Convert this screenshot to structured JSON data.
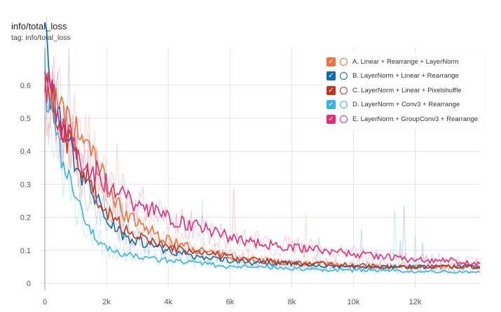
{
  "header": {
    "title": "info/total_loss",
    "subtitle": "tag: info/total_loss"
  },
  "chart_data": {
    "type": "line",
    "title": "info/total_loss",
    "xlim": [
      0,
      14100
    ],
    "ylim": [
      0,
      0.72
    ],
    "x_ticks": [
      0,
      2000,
      4000,
      6000,
      8000,
      10000,
      12000
    ],
    "x_tick_labels": [
      "0",
      "2k",
      "4k",
      "6k",
      "8k",
      "10k",
      "12k"
    ],
    "y_ticks": [
      0,
      0.1,
      0.2,
      0.3,
      0.4,
      0.5,
      0.6
    ],
    "y_tick_labels": [
      "0",
      "0.1",
      "0.2",
      "0.3",
      "0.4",
      "0.5",
      "0.6"
    ],
    "grid": true,
    "legend_position": "top-right",
    "x": [
      0,
      250,
      500,
      750,
      1000,
      1500,
      2000,
      2500,
      3000,
      4000,
      5000,
      6000,
      7000,
      8000,
      9000,
      10000,
      11000,
      12000,
      13000,
      14000
    ],
    "series": [
      {
        "name": "A. Linear + Rearrange + LayerNorm",
        "color": "#f4703c",
        "values": [
          0.65,
          0.55,
          0.52,
          0.48,
          0.46,
          0.4,
          0.3,
          0.22,
          0.18,
          0.13,
          0.1,
          0.08,
          0.07,
          0.06,
          0.06,
          0.05,
          0.05,
          0.05,
          0.05,
          0.05
        ]
      },
      {
        "name": "B. LayerNorm + Linear + Rearrange",
        "color": "#0d6bb0",
        "values": [
          0.75,
          0.55,
          0.48,
          0.42,
          0.37,
          0.28,
          0.2,
          0.15,
          0.13,
          0.1,
          0.08,
          0.07,
          0.06,
          0.06,
          0.05,
          0.05,
          0.05,
          0.05,
          0.05,
          0.05
        ]
      },
      {
        "name": "C. LayerNorm + Linear + Pixelshuffle",
        "color": "#c2361c",
        "values": [
          0.64,
          0.55,
          0.48,
          0.43,
          0.38,
          0.3,
          0.22,
          0.17,
          0.14,
          0.11,
          0.09,
          0.08,
          0.07,
          0.06,
          0.06,
          0.055,
          0.05,
          0.05,
          0.05,
          0.05
        ]
      },
      {
        "name": "D. LayerNorm + Conv3 + Rearrange",
        "color": "#35b4ea",
        "values": [
          0.62,
          0.5,
          0.4,
          0.32,
          0.25,
          0.15,
          0.11,
          0.09,
          0.08,
          0.07,
          0.06,
          0.05,
          0.05,
          0.045,
          0.04,
          0.04,
          0.04,
          0.035,
          0.035,
          0.035
        ]
      },
      {
        "name": "E. LayerNorm + GroupConv3 + Rearrange",
        "color": "#e72c75",
        "values": [
          0.62,
          0.55,
          0.5,
          0.45,
          0.4,
          0.35,
          0.3,
          0.27,
          0.24,
          0.2,
          0.17,
          0.14,
          0.12,
          0.11,
          0.1,
          0.09,
          0.08,
          0.07,
          0.07,
          0.06
        ]
      }
    ]
  }
}
